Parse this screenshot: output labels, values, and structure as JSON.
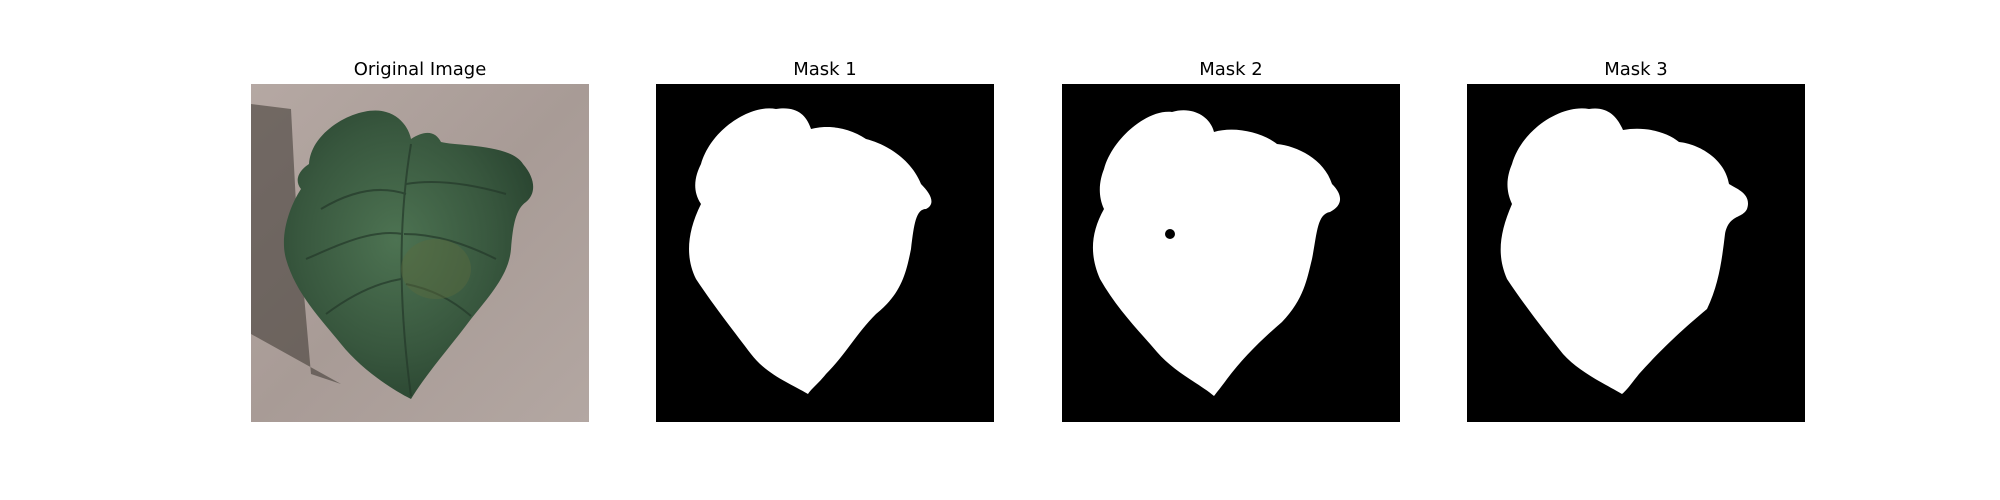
{
  "panels": [
    {
      "title": "Original Image"
    },
    {
      "title": "Mask 1"
    },
    {
      "title": "Mask 2"
    },
    {
      "title": "Mask 3"
    }
  ],
  "colors": {
    "background_photo": "#a99c97",
    "leaf_dark": "#2f4a36",
    "leaf_mid": "#466a4c",
    "mask_background": "#000000",
    "mask_foreground": "#ffffff"
  }
}
